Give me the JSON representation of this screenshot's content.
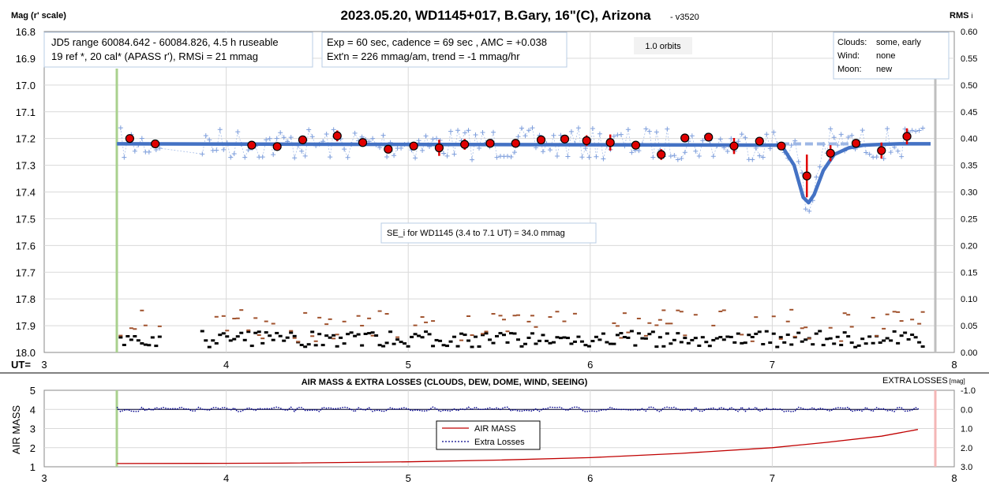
{
  "top_chart": {
    "title": "2023.05.20, WD1145+017, B.Gary, 16\"(C), Arizona",
    "version": "- v3520",
    "y_left_label": "Mag (r' scale)",
    "y_right_label": "RMS",
    "y_right_label_sub": "i",
    "x_label": "UT=",
    "x_ticks": [
      "3",
      "4",
      "5",
      "6",
      "7",
      "8"
    ],
    "y_left_ticks": [
      "16.8",
      "16.9",
      "17.0",
      "17.1",
      "17.2",
      "17.3",
      "17.4",
      "17.5",
      "17.6",
      "17.7",
      "17.8",
      "17.9",
      "18.0"
    ],
    "y_right_ticks": [
      "0.60",
      "0.55",
      "0.50",
      "0.45",
      "0.40",
      "0.35",
      "0.30",
      "0.25",
      "0.20",
      "0.15",
      "0.10",
      "0.05",
      "0.00"
    ],
    "box_jd": {
      "line1": "JD5 range 60084.642 - 60084.826, 4.5 h ruseable",
      "line2": "19 ref *, 20 cal*  (APASS r'), RMSi = 21 mmag"
    },
    "box_exp": {
      "line1": "Exp = 60 sec, cadence = 69 sec , AMC = +0.038",
      "line2": "Ext'n = 226 mmag/am, trend = -1 mmag/hr"
    },
    "orbits_label": "1.0 orbits",
    "box_weather": {
      "l1": "Clouds:",
      "v1": "some, early",
      "l2": "Wind:",
      "v2": "none",
      "l3": "Moon:",
      "v3": "new"
    },
    "se_box": "SE_i for WD1145 (3.4 to 7.1 UT) = 34.0 mmag"
  },
  "bottom_chart": {
    "title": "AIR MASS & EXTRA LOSSES (CLOUDS, DEW, DOME, WIND, SEEING)",
    "right_label": "EXTRA",
    "right_label_big": "LOSSES",
    "right_label_unit": "[mag]",
    "y_left_label": "AIR MASS",
    "x_ticks": [
      "3",
      "4",
      "5",
      "6",
      "7",
      "8"
    ],
    "y_left_ticks": [
      "5",
      "4",
      "3",
      "2",
      "1"
    ],
    "y_right_ticks": [
      "-1.0",
      "0.0",
      "1.0",
      "2.0",
      "3.0"
    ],
    "legend_airmass": "AIR MASS",
    "legend_losses": "Extra Losses"
  },
  "colors": {
    "model": "#4472c4",
    "binned": "#e00000",
    "raw": "#7f9fdc",
    "rms_black": "#000000",
    "rms_brown": "#a0522d",
    "airmass": "#c00000",
    "losses": "#00008b",
    "start_line": "#a9d18e",
    "end_line": "#bfbfbf",
    "end_line_bottom": "#f4b6b6"
  },
  "chart_data": [
    {
      "type": "scatter",
      "title": "2023.05.20, WD1145+017, B.Gary, 16\"(C), Arizona",
      "xlabel": "UT",
      "ylabel": "Mag (r' scale)",
      "xlim": [
        3,
        8
      ],
      "ylim": [
        18.0,
        16.8
      ],
      "y2lim": [
        0.0,
        0.6
      ],
      "ut_start": 3.4,
      "ut_end": 7.9,
      "series": [
        {
          "name": "binned",
          "x": [
            3.47,
            3.61,
            4.14,
            4.28,
            4.42,
            4.61,
            4.75,
            4.89,
            5.03,
            5.17,
            5.31,
            5.45,
            5.59,
            5.73,
            5.86,
            5.98,
            6.11,
            6.25,
            6.39,
            6.52,
            6.65,
            6.79,
            6.93,
            7.05,
            7.19,
            7.32,
            7.46,
            7.6,
            7.74
          ],
          "y": [
            17.2,
            17.22,
            17.225,
            17.23,
            17.205,
            17.19,
            17.215,
            17.24,
            17.228,
            17.235,
            17.222,
            17.218,
            17.218,
            17.205,
            17.202,
            17.208,
            17.215,
            17.225,
            17.26,
            17.198,
            17.195,
            17.228,
            17.21,
            17.228,
            17.34,
            17.255,
            17.218,
            17.245,
            17.192
          ],
          "err": [
            0.0,
            0.0,
            0.0,
            0.0,
            0.0,
            0.02,
            0.0,
            0.0,
            0.0,
            0.03,
            0.02,
            0.0,
            0.0,
            0.0,
            0.0,
            0.02,
            0.03,
            0.0,
            0.02,
            0.0,
            0.0,
            0.03,
            0.0,
            0.0,
            0.08,
            0.03,
            0.0,
            0.03,
            0.03
          ]
        },
        {
          "name": "model",
          "x": [
            3.4,
            7.05,
            7.12,
            7.17,
            7.2,
            7.23,
            7.28,
            7.34,
            7.42,
            7.5,
            7.6,
            7.7,
            7.87
          ],
          "y": [
            17.22,
            17.225,
            17.3,
            17.42,
            17.44,
            17.41,
            17.32,
            17.26,
            17.235,
            17.225,
            17.222,
            17.22,
            17.22
          ]
        }
      ]
    },
    {
      "type": "line",
      "title": "AIR MASS & EXTRA LOSSES (CLOUDS, DEW, DOME, WIND, SEEING)",
      "xlabel": "UT",
      "ylabel": "AIR MASS",
      "xlim": [
        3,
        8
      ],
      "ylim": [
        1,
        5
      ],
      "y2lim": [
        3.0,
        -1.0
      ],
      "series": [
        {
          "name": "AIR MASS",
          "x": [
            3.4,
            4.0,
            4.3,
            5.0,
            5.5,
            6.0,
            6.5,
            7.0,
            7.3,
            7.6,
            7.8
          ],
          "y": [
            1.17,
            1.18,
            1.19,
            1.26,
            1.35,
            1.48,
            1.7,
            2.0,
            2.28,
            2.6,
            2.95
          ]
        },
        {
          "name": "Extra Losses",
          "x": [
            3.4,
            7.8
          ],
          "y": [
            0.0,
            0.0
          ]
        }
      ]
    }
  ]
}
